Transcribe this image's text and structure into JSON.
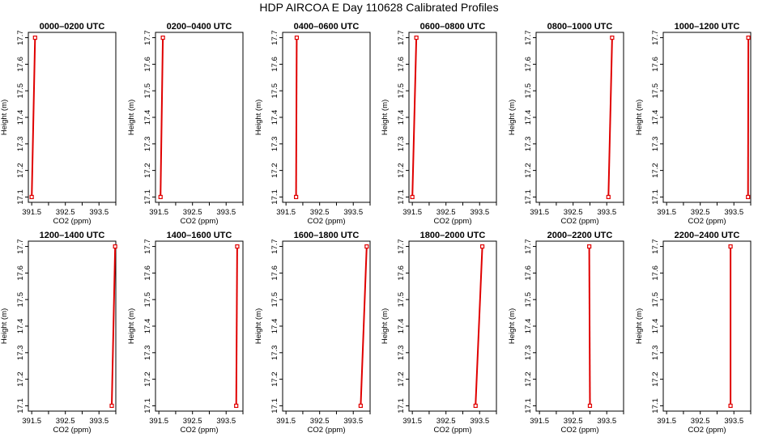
{
  "figure_title": "HDP AIRCOA E  Day 110628  Calibrated Profiles",
  "colors": {
    "series": "#e00000",
    "axis": "#000000"
  },
  "chart_data": [
    {
      "type": "line",
      "title": "0000–0200 UTC",
      "xlabel": "CO2 (ppm)",
      "ylabel": "Height (m)",
      "xlim": [
        391.4,
        394.0
      ],
      "ylim": [
        17.08,
        17.72
      ],
      "xticks": [
        "391.5",
        "392.5",
        "393.5"
      ],
      "yticks": [
        "17.1",
        "17.2",
        "17.3",
        "17.4",
        "17.5",
        "17.6",
        "17.7"
      ],
      "series": [
        {
          "x": [
            391.5,
            391.6
          ],
          "y": [
            17.1,
            17.7
          ]
        }
      ]
    },
    {
      "type": "line",
      "title": "0200–0400 UTC",
      "xlabel": "CO2 (ppm)",
      "ylabel": "Height (m)",
      "xlim": [
        391.4,
        394.0
      ],
      "ylim": [
        17.08,
        17.72
      ],
      "xticks": [
        "391.5",
        "392.5",
        "393.5"
      ],
      "yticks": [
        "17.1",
        "17.2",
        "17.3",
        "17.4",
        "17.5",
        "17.6",
        "17.7"
      ],
      "series": [
        {
          "x": [
            391.55,
            391.62
          ],
          "y": [
            17.1,
            17.7
          ]
        }
      ]
    },
    {
      "type": "line",
      "title": "0400–0600 UTC",
      "xlabel": "CO2 (ppm)",
      "ylabel": "Height (m)",
      "xlim": [
        391.4,
        394.0
      ],
      "ylim": [
        17.08,
        17.72
      ],
      "xticks": [
        "391.5",
        "392.5",
        "393.5"
      ],
      "yticks": [
        "17.1",
        "17.2",
        "17.3",
        "17.4",
        "17.5",
        "17.6",
        "17.7"
      ],
      "series": [
        {
          "x": [
            391.8,
            391.82
          ],
          "y": [
            17.1,
            17.7
          ]
        }
      ]
    },
    {
      "type": "line",
      "title": "0600–0800 UTC",
      "xlabel": "CO2 (ppm)",
      "ylabel": "Height (m)",
      "xlim": [
        391.4,
        394.0
      ],
      "ylim": [
        17.08,
        17.72
      ],
      "xticks": [
        "391.5",
        "392.5",
        "393.5"
      ],
      "yticks": [
        "17.1",
        "17.2",
        "17.3",
        "17.4",
        "17.5",
        "17.6",
        "17.7"
      ],
      "series": [
        {
          "x": [
            391.5,
            391.62
          ],
          "y": [
            17.1,
            17.7
          ]
        }
      ]
    },
    {
      "type": "line",
      "title": "0800–1000 UTC",
      "xlabel": "CO2 (ppm)",
      "ylabel": "Height (m)",
      "xlim": [
        391.4,
        394.0
      ],
      "ylim": [
        17.08,
        17.72
      ],
      "xticks": [
        "391.5",
        "392.5",
        "393.5"
      ],
      "yticks": [
        "17.1",
        "17.2",
        "17.3",
        "17.4",
        "17.5",
        "17.6",
        "17.7"
      ],
      "series": [
        {
          "x": [
            393.55,
            393.66
          ],
          "y": [
            17.1,
            17.7
          ]
        }
      ]
    },
    {
      "type": "line",
      "title": "1000–1200 UTC",
      "xlabel": "CO2 (ppm)",
      "ylabel": "Height (m)",
      "xlim": [
        391.4,
        394.0
      ],
      "ylim": [
        17.08,
        17.72
      ],
      "xticks": [
        "391.5",
        "392.5",
        "393.5"
      ],
      "yticks": [
        "17.1",
        "17.2",
        "17.3",
        "17.4",
        "17.5",
        "17.6",
        "17.7"
      ],
      "series": [
        {
          "x": [
            393.92,
            393.93
          ],
          "y": [
            17.1,
            17.7
          ]
        }
      ]
    },
    {
      "type": "line",
      "title": "1200–1400 UTC",
      "xlabel": "CO2 (ppm)",
      "ylabel": "Height (m)",
      "xlim": [
        391.4,
        394.0
      ],
      "ylim": [
        17.08,
        17.72
      ],
      "xticks": [
        "391.5",
        "392.5",
        "393.5"
      ],
      "yticks": [
        "17.1",
        "17.2",
        "17.3",
        "17.4",
        "17.5",
        "17.6",
        "17.7"
      ],
      "series": [
        {
          "x": [
            393.88,
            393.98
          ],
          "y": [
            17.1,
            17.7
          ]
        }
      ]
    },
    {
      "type": "line",
      "title": "1400–1600 UTC",
      "xlabel": "CO2 (ppm)",
      "ylabel": "Height (m)",
      "xlim": [
        391.4,
        394.0
      ],
      "ylim": [
        17.08,
        17.72
      ],
      "xticks": [
        "391.5",
        "392.5",
        "393.5"
      ],
      "yticks": [
        "17.1",
        "17.2",
        "17.3",
        "17.4",
        "17.5",
        "17.6",
        "17.7"
      ],
      "series": [
        {
          "x": [
            393.8,
            393.83
          ],
          "y": [
            17.1,
            17.7
          ]
        }
      ]
    },
    {
      "type": "line",
      "title": "1600–1800 UTC",
      "xlabel": "CO2 (ppm)",
      "ylabel": "Height (m)",
      "xlim": [
        391.4,
        394.0
      ],
      "ylim": [
        17.08,
        17.72
      ],
      "xticks": [
        "391.5",
        "392.5",
        "393.5"
      ],
      "yticks": [
        "17.1",
        "17.2",
        "17.3",
        "17.4",
        "17.5",
        "17.6",
        "17.7"
      ],
      "series": [
        {
          "x": [
            393.72,
            393.9
          ],
          "y": [
            17.1,
            17.7
          ]
        }
      ]
    },
    {
      "type": "line",
      "title": "1800–2000 UTC",
      "xlabel": "CO2 (ppm)",
      "ylabel": "Height (m)",
      "xlim": [
        391.4,
        394.0
      ],
      "ylim": [
        17.08,
        17.72
      ],
      "xticks": [
        "391.5",
        "392.5",
        "393.5"
      ],
      "yticks": [
        "17.1",
        "17.2",
        "17.3",
        "17.4",
        "17.5",
        "17.6",
        "17.7"
      ],
      "series": [
        {
          "x": [
            393.38,
            393.58
          ],
          "y": [
            17.1,
            17.7
          ]
        }
      ]
    },
    {
      "type": "line",
      "title": "2000–2200 UTC",
      "xlabel": "CO2 (ppm)",
      "ylabel": "Height (m)",
      "xlim": [
        391.4,
        394.0
      ],
      "ylim": [
        17.08,
        17.72
      ],
      "xticks": [
        "391.5",
        "392.5",
        "393.5"
      ],
      "yticks": [
        "17.1",
        "17.2",
        "17.3",
        "17.4",
        "17.5",
        "17.6",
        "17.7"
      ],
      "series": [
        {
          "x": [
            393.0,
            392.98
          ],
          "y": [
            17.1,
            17.7
          ]
        }
      ]
    },
    {
      "type": "line",
      "title": "2200–2400 UTC",
      "xlabel": "CO2 (ppm)",
      "ylabel": "Height (m)",
      "xlim": [
        391.4,
        394.0
      ],
      "ylim": [
        17.08,
        17.72
      ],
      "xticks": [
        "391.5",
        "392.5",
        "393.5"
      ],
      "yticks": [
        "17.1",
        "17.2",
        "17.3",
        "17.4",
        "17.5",
        "17.6",
        "17.7"
      ],
      "series": [
        {
          "x": [
            393.4,
            393.4
          ],
          "y": [
            17.1,
            17.7
          ]
        }
      ]
    }
  ]
}
